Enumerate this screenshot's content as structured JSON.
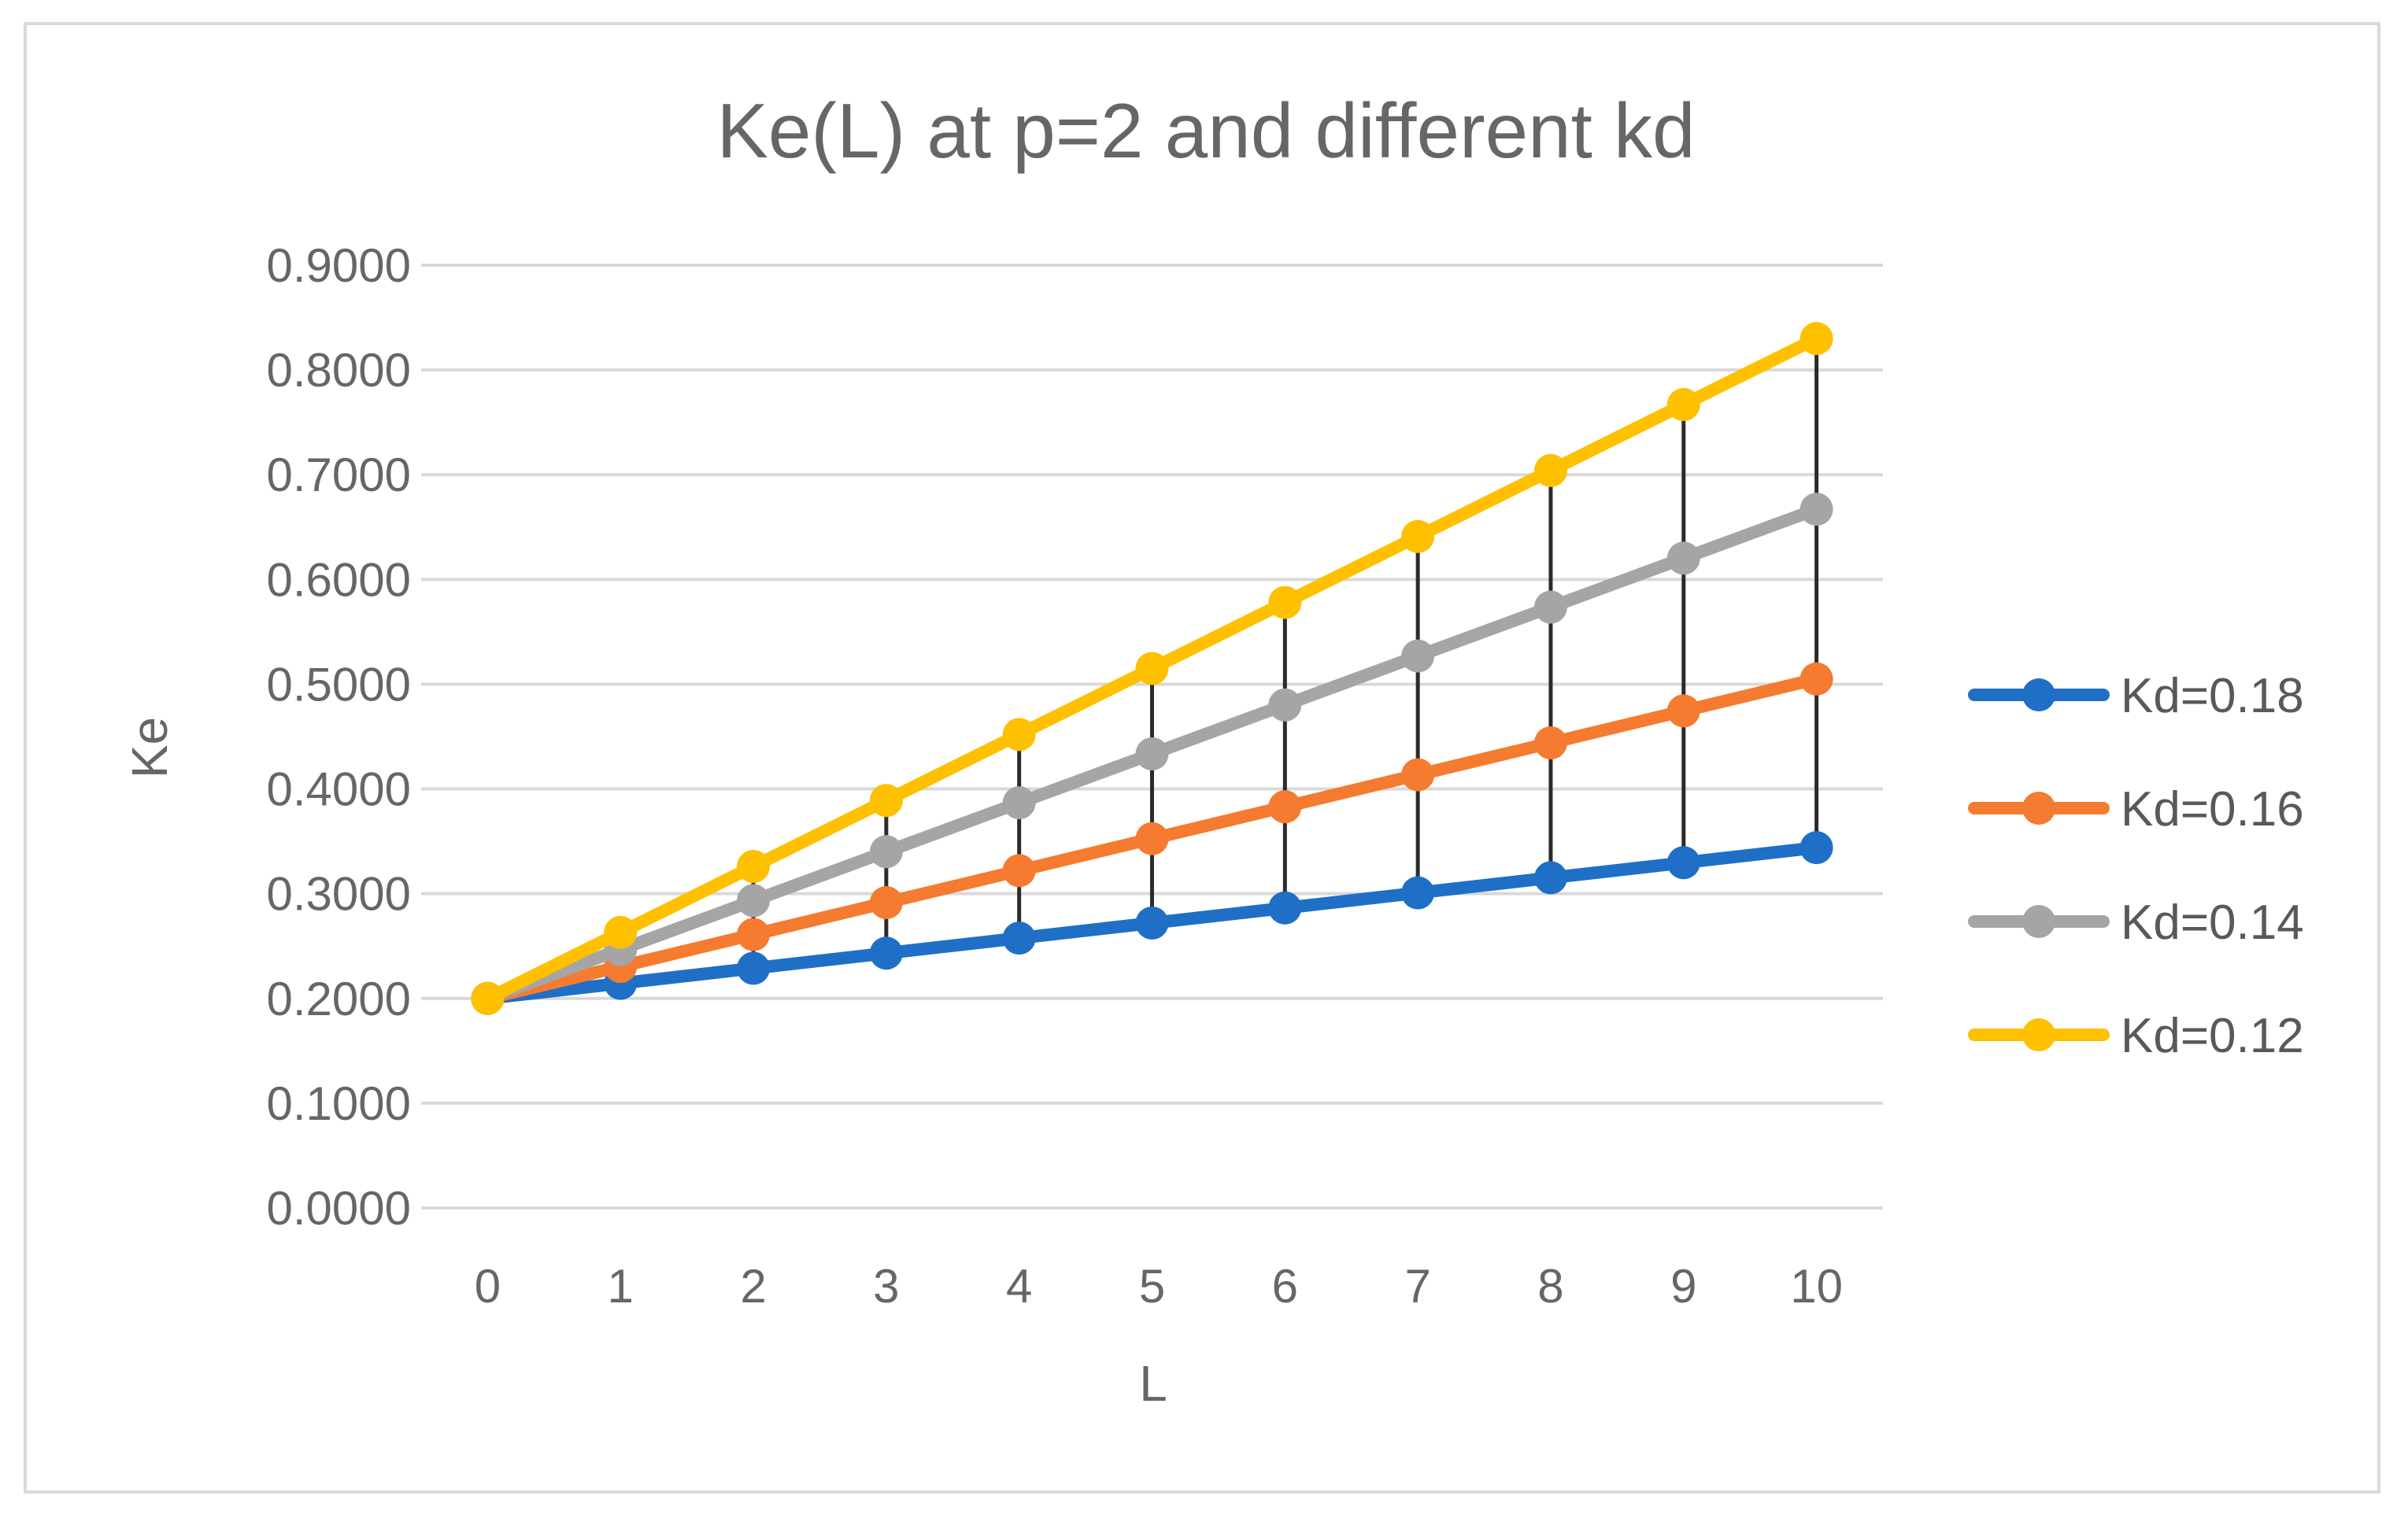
{
  "chart_data": {
    "type": "line",
    "title": "Ke(L) at p=2 and different kd",
    "xlabel": "L",
    "ylabel": "Ke",
    "categories": [
      0,
      1,
      2,
      3,
      4,
      5,
      6,
      7,
      8,
      9,
      10
    ],
    "ylim": [
      0,
      0.9
    ],
    "yticks": [
      "0.0000",
      "0.1000",
      "0.2000",
      "0.3000",
      "0.4000",
      "0.5000",
      "0.6000",
      "0.7000",
      "0.8000",
      "0.9000"
    ],
    "grid": true,
    "legend_position": "right",
    "high_low_lines": true,
    "series": [
      {
        "name": "Kd=0.18",
        "color": "#1f6fc6",
        "values": [
          0.2,
          0.2144,
          0.2288,
          0.2432,
          0.2576,
          0.272,
          0.2864,
          0.3008,
          0.3152,
          0.3296,
          0.344
        ]
      },
      {
        "name": "Kd=0.16",
        "color": "#f47b2f",
        "values": [
          0.2,
          0.2305,
          0.261,
          0.2915,
          0.322,
          0.3525,
          0.383,
          0.4135,
          0.444,
          0.4745,
          0.505
        ]
      },
      {
        "name": "Kd=0.14",
        "color": "#a5a5a5",
        "values": [
          0.2,
          0.2467,
          0.2934,
          0.3401,
          0.3868,
          0.4335,
          0.4802,
          0.5269,
          0.5736,
          0.6203,
          0.667
        ]
      },
      {
        "name": "Kd=0.12",
        "color": "#ffc000",
        "values": [
          0.2,
          0.263,
          0.326,
          0.389,
          0.452,
          0.515,
          0.578,
          0.641,
          0.704,
          0.767,
          0.83
        ]
      }
    ]
  }
}
